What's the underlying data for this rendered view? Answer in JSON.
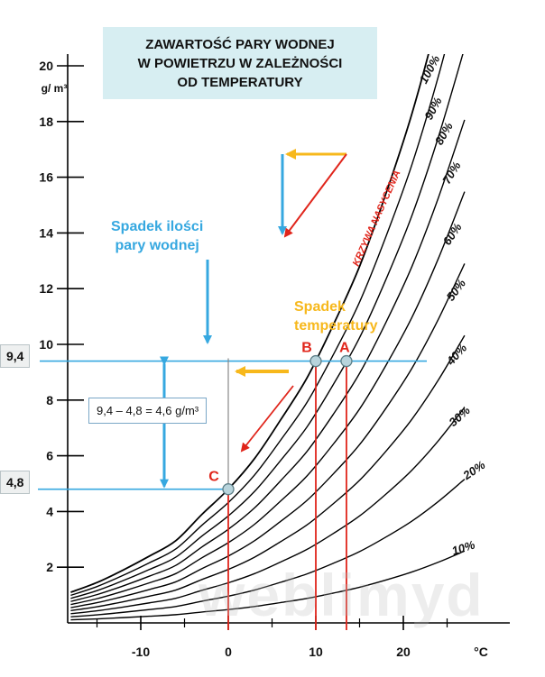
{
  "title_lines": [
    "ZAWARTOŚĆ PARY WODNEJ",
    "W POWIETRZU W ZALEŻNOŚCI",
    "OD TEMPERATURY"
  ],
  "ylabel": "g/ m³",
  "xlabel": "°C",
  "notes": {
    "humidity_drop": [
      "Spadek ilości",
      "pary wodnej"
    ],
    "temperature_drop": [
      "Spadek",
      "temperatury"
    ],
    "saturation_curve": "KRZYWA NASYCENIA",
    "difference": "9,4 – 4,8 =  4,6 g/m³",
    "value_high": "9,4",
    "value_low": "4,8"
  },
  "watermark": "weblimyd",
  "colors": {
    "curves": "#000000",
    "blue": "#36a8e0",
    "red": "#e0251b",
    "orange": "#f7b81c",
    "title_bg": "#d7eef2"
  },
  "chart_data": {
    "type": "line",
    "title": "ZAWARTOŚĆ PARY WODNEJ W POWIETRZU W ZALEŻNOŚCI OD TEMPERATURY",
    "xlabel": "°C",
    "ylabel": "g/ m³",
    "xlim": [
      -18,
      28
    ],
    "ylim": [
      0,
      20.5
    ],
    "x_ticks": [
      -10,
      0,
      10,
      20
    ],
    "y_ticks": [
      2,
      4,
      6,
      8,
      10,
      12,
      14,
      16,
      18,
      20
    ],
    "x": [
      -18,
      -15,
      -12,
      -9,
      -6,
      -3,
      0,
      3,
      6,
      9,
      12,
      15,
      18,
      21,
      24,
      27
    ],
    "saturation_values": [
      1.1,
      1.45,
      1.9,
      2.4,
      2.95,
      3.9,
      4.8,
      5.9,
      7.3,
      8.8,
      10.7,
      12.8,
      15.4,
      18.3,
      21.8,
      25.8
    ],
    "series": [
      {
        "name": "100%",
        "fraction": 1.0
      },
      {
        "name": "90%",
        "fraction": 0.9
      },
      {
        "name": "80%",
        "fraction": 0.8
      },
      {
        "name": "70%",
        "fraction": 0.7
      },
      {
        "name": "60%",
        "fraction": 0.6
      },
      {
        "name": "50%",
        "fraction": 0.5
      },
      {
        "name": "40%",
        "fraction": 0.4
      },
      {
        "name": "30%",
        "fraction": 0.3
      },
      {
        "name": "20%",
        "fraction": 0.2
      },
      {
        "name": "10%",
        "fraction": 0.1
      }
    ],
    "points": [
      {
        "label": "A",
        "x": 13.5,
        "y": 9.4
      },
      {
        "label": "B",
        "x": 10,
        "y": 9.4
      },
      {
        "label": "C",
        "x": 0,
        "y": 4.8
      }
    ],
    "reference_lines": {
      "horizontal": [
        9.4,
        4.8
      ],
      "vertical": [
        0,
        10,
        13.5
      ]
    }
  }
}
